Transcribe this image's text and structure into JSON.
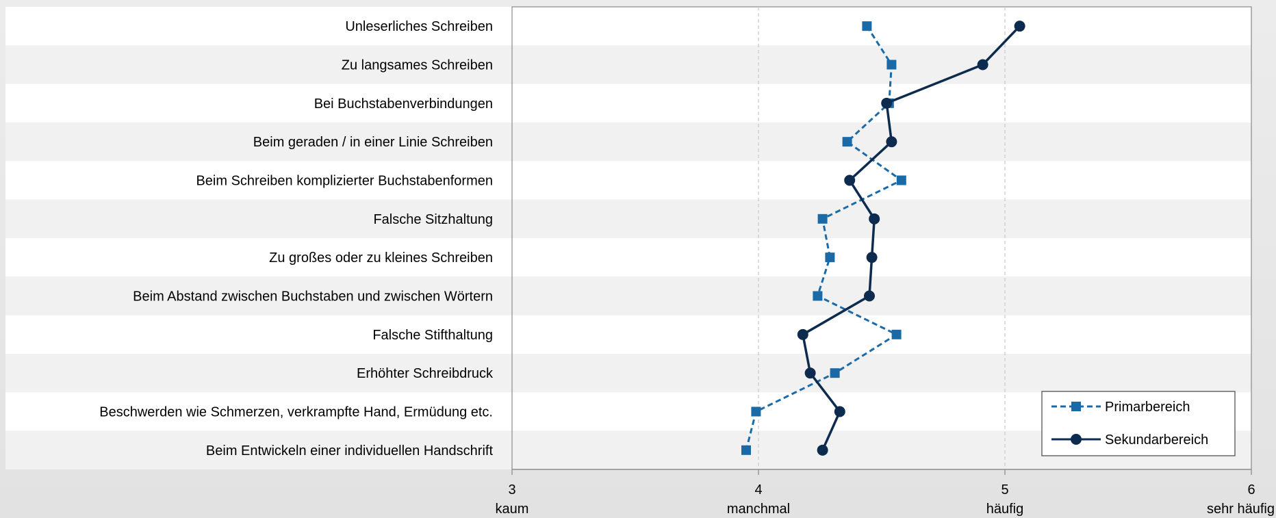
{
  "chart_data": {
    "type": "line",
    "orientation": "horizontal",
    "categories": [
      "Unleserliches Schreiben",
      "Zu langsames Schreiben",
      "Bei Buchstabenverbindungen",
      "Beim geraden / in einer Linie Schreiben",
      "Beim Schreiben komplizierter Buchstabenformen",
      "Falsche Sitzhaltung",
      "Zu großes oder zu kleines Schreiben",
      "Beim Abstand zwischen Buchstaben und zwischen Wörtern",
      "Falsche Stifthaltung",
      "Erhöhter Schreibdruck",
      "Beschwerden wie Schmerzen, verkrampfte Hand, Ermüdung etc.",
      "Beim Entwickeln einer individuellen Handschrift"
    ],
    "series": [
      {
        "name": "Primarbereich",
        "color": "#1a6aa8",
        "marker": "square",
        "dash": "dashed",
        "values": [
          4.44,
          4.54,
          4.53,
          4.36,
          4.58,
          4.26,
          4.29,
          4.24,
          4.56,
          4.31,
          3.99,
          3.95
        ]
      },
      {
        "name": "Sekundarbereich",
        "color": "#0d2b4e",
        "marker": "circle",
        "dash": "solid",
        "values": [
          5.06,
          4.91,
          4.52,
          4.54,
          4.37,
          4.47,
          4.46,
          4.45,
          4.18,
          4.21,
          4.33,
          4.26
        ]
      }
    ],
    "xlim": [
      3,
      6
    ],
    "x_ticks": [
      3,
      4,
      5,
      6
    ],
    "x_tick_labels": [
      "kaum",
      "manchmal",
      "häufig",
      "sehr häufig"
    ],
    "grid": "vertical-dashed",
    "legend_position": "bottom-right",
    "title": "",
    "xlabel": "",
    "ylabel": ""
  }
}
